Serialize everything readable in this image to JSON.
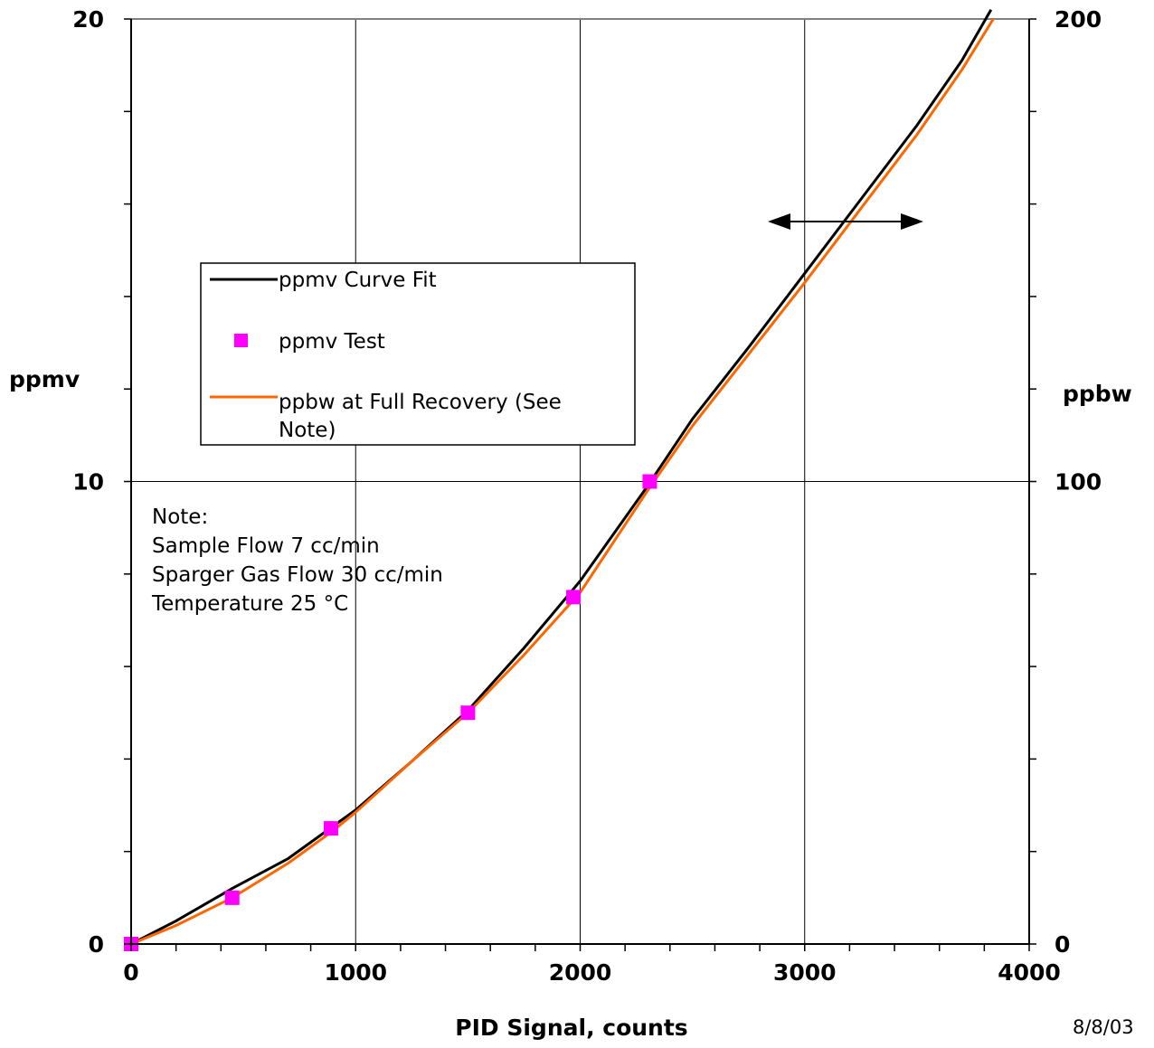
{
  "chart_data": {
    "type": "line",
    "xlabel": "PID Signal, counts",
    "ylabel": "ppmv",
    "y2label": "ppbw",
    "xlim": [
      0,
      4000
    ],
    "ylim": [
      0,
      20
    ],
    "y2lim": [
      0,
      200
    ],
    "x_ticks": [
      "0",
      "1000",
      "2000",
      "3000",
      "4000"
    ],
    "y_ticks": [
      "0",
      "10",
      "20"
    ],
    "y2_ticks": [
      "0",
      "100",
      "200"
    ],
    "grid": true,
    "legend_position": "upper-left",
    "series": [
      {
        "name": "ppmv Curve Fit",
        "style": "line",
        "color": "#000000",
        "axis": "left",
        "x": [
          0,
          200,
          450,
          700,
          900,
          1000,
          1250,
          1500,
          1750,
          2000,
          2300,
          2500,
          2750,
          3000,
          3250,
          3500,
          3700,
          3830
        ],
        "y": [
          0,
          0.5,
          1.2,
          1.85,
          2.55,
          2.9,
          3.95,
          5.05,
          6.4,
          7.85,
          9.9,
          11.35,
          12.9,
          14.5,
          16.1,
          17.7,
          19.1,
          20.2
        ]
      },
      {
        "name": "ppmv Test",
        "style": "marker",
        "color": "#ff00ff",
        "axis": "left",
        "x": [
          0,
          450,
          890,
          1500,
          1970,
          2310
        ],
        "y": [
          0,
          1.0,
          2.5,
          5.0,
          7.5,
          10.0
        ]
      },
      {
        "name": "ppbw at Full Recovery (See Note)",
        "style": "line",
        "color": "#ff6600",
        "axis": "right",
        "x": [
          0,
          200,
          450,
          700,
          900,
          1000,
          1250,
          1500,
          1750,
          2000,
          2300,
          2500,
          2750,
          3000,
          3250,
          3500,
          3700,
          3840
        ],
        "y": [
          0,
          4.0,
          10.0,
          17.5,
          24.5,
          28.5,
          39.5,
          50.0,
          62.5,
          76.0,
          98.0,
          112.0,
          127.5,
          143.0,
          159.0,
          175.0,
          189.0,
          200.0
        ]
      }
    ],
    "note_lines": [
      "Note:",
      "Sample Flow 7 cc/min",
      "Sparger Gas Flow 30 cc/min",
      "Temperature 25 °C"
    ],
    "date": "8/8/03"
  },
  "legend": {
    "items": [
      {
        "label_lines": [
          "ppmv Curve Fit"
        ]
      },
      {
        "label_lines": [
          "ppmv Test"
        ]
      },
      {
        "label_lines": [
          "ppbw at Full Recovery (See",
          "Note)"
        ]
      }
    ]
  }
}
